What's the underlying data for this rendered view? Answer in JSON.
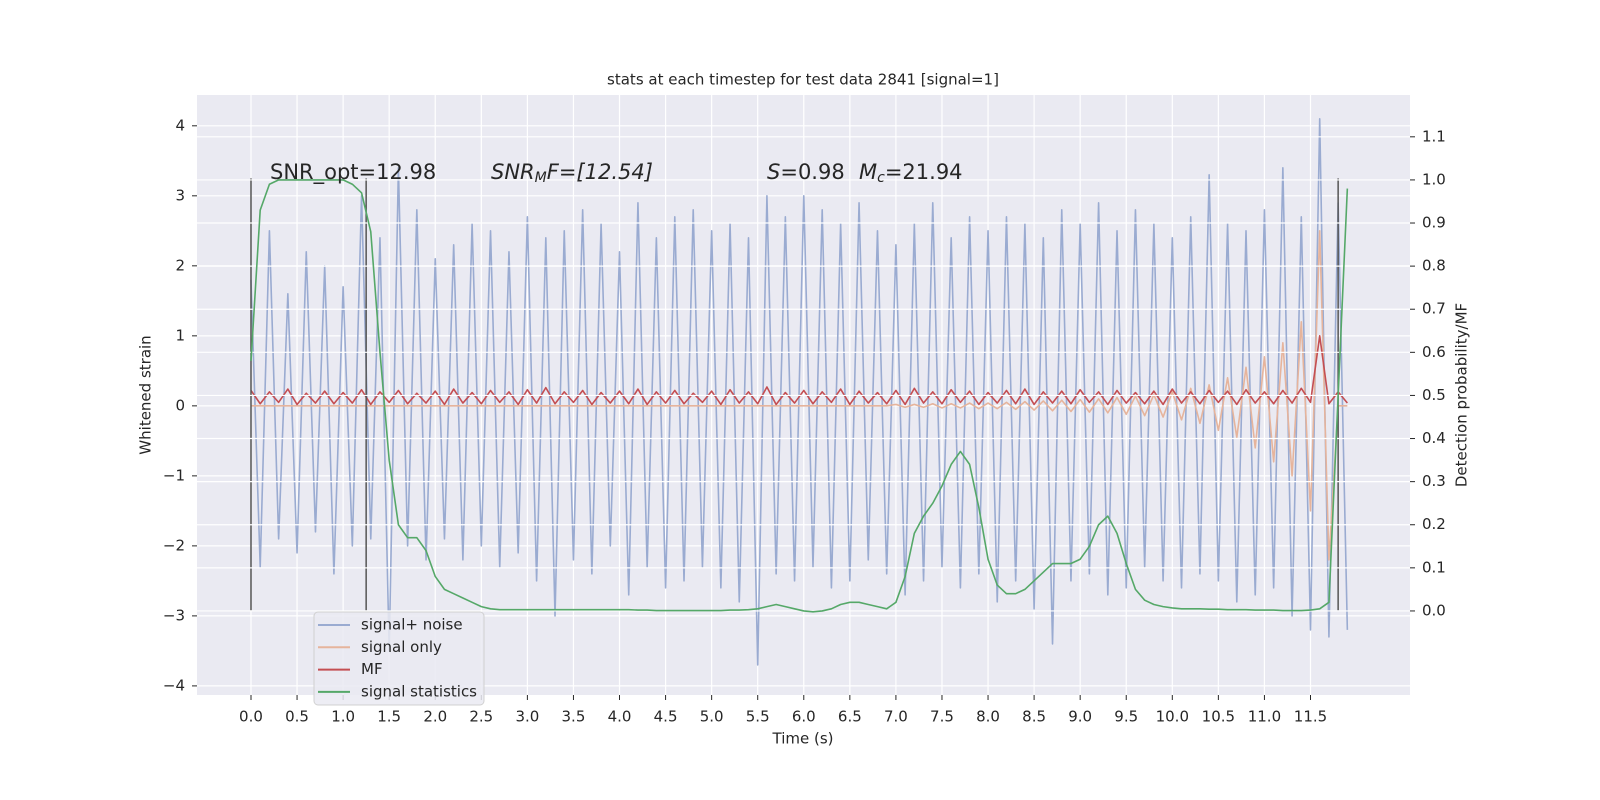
{
  "chart_data": {
    "type": "line",
    "title": "stats at each timestep for test data 2841 [signal=1]",
    "x_label": "Time (s)",
    "y_label": "Whitened strain",
    "y2_label": "Detection probability/MF",
    "annotations": [
      [
        "SNR_opt=12.98"
      ],
      [
        "SNR",
        "M",
        "F=[12.54]"
      ],
      [
        "S",
        "=0.98"
      ],
      [
        "M",
        "c",
        "=21.94"
      ]
    ],
    "x": [
      0,
      0.1,
      0.2,
      0.3,
      0.4,
      0.5,
      0.6,
      0.7,
      0.8,
      0.9,
      1,
      1.1,
      1.2,
      1.3,
      1.4,
      1.5,
      1.6,
      1.7,
      1.8,
      1.9,
      2,
      2.1,
      2.2,
      2.3,
      2.4,
      2.5,
      2.6,
      2.7,
      2.8,
      2.9,
      3,
      3.1,
      3.2,
      3.3,
      3.4,
      3.5,
      3.6,
      3.7,
      3.8,
      3.9,
      4,
      4.1,
      4.2,
      4.3,
      4.4,
      4.5,
      4.6,
      4.7,
      4.8,
      4.9,
      5,
      5.1,
      5.2,
      5.3,
      5.4,
      5.5,
      5.6,
      5.7,
      5.8,
      5.9,
      6,
      6.1,
      6.2,
      6.3,
      6.4,
      6.5,
      6.6,
      6.7,
      6.8,
      6.9,
      7,
      7.1,
      7.2,
      7.3,
      7.4,
      7.5,
      7.6,
      7.7,
      7.8,
      7.9,
      8,
      8.1,
      8.2,
      8.3,
      8.4,
      8.5,
      8.6,
      8.7,
      8.8,
      8.9,
      9,
      9.1,
      9.2,
      9.3,
      9.4,
      9.5,
      9.6,
      9.7,
      9.8,
      9.9,
      10,
      10.1,
      10.2,
      10.3,
      10.4,
      10.5,
      10.6,
      10.7,
      10.8,
      10.9,
      11,
      11.1,
      11.2,
      11.3,
      11.4,
      11.5,
      11.6,
      11.7,
      11.8,
      11.9
    ],
    "series": [
      {
        "name": "signal+ noise",
        "color": "#9aabd1",
        "values": [
          1.8,
          -2.3,
          2.5,
          -1.9,
          1.6,
          -2.1,
          2.2,
          -1.8,
          2.0,
          -2.4,
          1.7,
          -2.0,
          3.0,
          -1.9,
          2.4,
          -3.5,
          3.4,
          -2.0,
          2.8,
          -2.2,
          2.1,
          -1.9,
          2.3,
          -2.2,
          2.6,
          -2.0,
          2.5,
          -2.3,
          2.2,
          -2.1,
          2.7,
          -2.5,
          2.4,
          -3.0,
          2.5,
          -2.2,
          2.8,
          -2.4,
          2.6,
          -2.0,
          2.2,
          -2.7,
          2.9,
          -2.3,
          2.4,
          -2.6,
          2.7,
          -2.5,
          2.8,
          -2.3,
          2.5,
          -2.6,
          2.6,
          -2.8,
          2.4,
          -3.7,
          3.0,
          -2.4,
          2.7,
          -2.5,
          3.0,
          -2.3,
          2.8,
          -2.6,
          2.6,
          -2.5,
          2.9,
          -2.2,
          2.5,
          -2.4,
          2.3,
          -2.7,
          2.6,
          -2.5,
          2.9,
          -2.3,
          2.4,
          -2.6,
          2.7,
          -2.4,
          2.5,
          -2.8,
          2.7,
          -2.5,
          2.6,
          -2.9,
          2.4,
          -3.4,
          2.8,
          -2.5,
          2.6,
          -2.4,
          2.9,
          -2.7,
          2.5,
          -2.6,
          2.8,
          -2.3,
          2.6,
          -2.5,
          2.4,
          -2.6,
          2.7,
          -2.4,
          3.3,
          -2.5,
          2.6,
          -2.8,
          2.5,
          -2.7,
          2.8,
          -2.6,
          3.4,
          -3.0,
          2.7,
          -3.2,
          4.1,
          -3.3,
          2.9,
          -3.2
        ]
      },
      {
        "name": "signal only",
        "color": "#e6b49c",
        "values": [
          0,
          0,
          0,
          0,
          0,
          0,
          0,
          0,
          0,
          0,
          0,
          0,
          0,
          0,
          0,
          0,
          0,
          0,
          0,
          0,
          0,
          0,
          0,
          0,
          0,
          0,
          0,
          0,
          0,
          0,
          0,
          0,
          0,
          0,
          0,
          0,
          0,
          0,
          0,
          0,
          0,
          0,
          0,
          0,
          0,
          0,
          0,
          0,
          0,
          0,
          0,
          0,
          0,
          0,
          0,
          0,
          0,
          0,
          0,
          0,
          0,
          0,
          0,
          0,
          0,
          0,
          0,
          0,
          0,
          0,
          0.02,
          -0.02,
          0.02,
          -0.02,
          0.03,
          -0.03,
          0.03,
          -0.03,
          0.04,
          -0.04,
          0.04,
          -0.04,
          0.05,
          -0.05,
          0.06,
          -0.06,
          0.07,
          -0.07,
          0.08,
          -0.08,
          0.09,
          -0.09,
          0.1,
          -0.1,
          0.12,
          -0.12,
          0.14,
          -0.14,
          0.16,
          -0.16,
          0.2,
          -0.2,
          0.25,
          -0.25,
          0.3,
          -0.35,
          0.4,
          -0.45,
          0.55,
          -0.6,
          0.7,
          -0.8,
          0.9,
          -1.0,
          1.2,
          -1.5,
          2.5,
          -2.2,
          0,
          0
        ]
      },
      {
        "name": "MF",
        "color": "#c44e52",
        "values": [
          0.22,
          0.03,
          0.2,
          0.05,
          0.24,
          0.02,
          0.18,
          0.04,
          0.21,
          0.03,
          0.19,
          0.04,
          0.23,
          0.02,
          0.2,
          0.05,
          0.22,
          0.03,
          0.18,
          0.04,
          0.21,
          0.02,
          0.24,
          0.04,
          0.19,
          0.03,
          0.22,
          0.05,
          0.2,
          0.02,
          0.23,
          0.04,
          0.26,
          0.03,
          0.2,
          0.05,
          0.22,
          0.02,
          0.19,
          0.04,
          0.21,
          0.03,
          0.24,
          0.02,
          0.2,
          0.04,
          0.22,
          0.03,
          0.18,
          0.05,
          0.21,
          0.02,
          0.23,
          0.04,
          0.2,
          0.03,
          0.27,
          0.02,
          0.19,
          0.04,
          0.22,
          0.03,
          0.2,
          0.05,
          0.24,
          0.02,
          0.21,
          0.04,
          0.19,
          0.03,
          0.22,
          0.02,
          0.25,
          0.04,
          0.2,
          0.03,
          0.23,
          0.05,
          0.21,
          0.02,
          0.19,
          0.04,
          0.22,
          0.03,
          0.24,
          0.02,
          0.2,
          0.04,
          0.21,
          0.03,
          0.23,
          0.05,
          0.2,
          0.02,
          0.22,
          0.04,
          0.19,
          0.03,
          0.21,
          0.02,
          0.24,
          0.04,
          0.2,
          0.03,
          0.22,
          0.05,
          0.21,
          0.02,
          0.23,
          0.04,
          0.2,
          0.03,
          0.22,
          0.04,
          0.25,
          0.05,
          1.0,
          0.03,
          0.2,
          0.04
        ]
      },
      {
        "name": "signal statistics",
        "color": "#55a868",
        "axis": "y2",
        "values": [
          0.58,
          0.93,
          0.99,
          1.0,
          1.0,
          1.0,
          1.0,
          1.0,
          1.0,
          1.0,
          1.0,
          0.99,
          0.97,
          0.88,
          0.6,
          0.35,
          0.2,
          0.17,
          0.17,
          0.14,
          0.08,
          0.05,
          0.04,
          0.03,
          0.02,
          0.01,
          0.005,
          0.003,
          0.003,
          0.003,
          0.003,
          0.003,
          0.003,
          0.003,
          0.003,
          0.003,
          0.003,
          0.003,
          0.003,
          0.003,
          0.003,
          0.003,
          0.002,
          0.002,
          0.001,
          0.001,
          0.001,
          0.001,
          0.001,
          0.001,
          0.001,
          0.001,
          0.002,
          0.002,
          0.003,
          0.005,
          0.01,
          0.015,
          0.01,
          0.005,
          0.0,
          -0.002,
          0.0,
          0.005,
          0.015,
          0.02,
          0.02,
          0.015,
          0.01,
          0.005,
          0.02,
          0.08,
          0.18,
          0.22,
          0.25,
          0.29,
          0.34,
          0.37,
          0.34,
          0.24,
          0.12,
          0.06,
          0.04,
          0.04,
          0.05,
          0.07,
          0.09,
          0.11,
          0.11,
          0.11,
          0.12,
          0.15,
          0.2,
          0.22,
          0.18,
          0.11,
          0.05,
          0.025,
          0.015,
          0.01,
          0.007,
          0.005,
          0.005,
          0.005,
          0.004,
          0.004,
          0.003,
          0.003,
          0.003,
          0.002,
          0.002,
          0.002,
          0.001,
          0.001,
          0.001,
          0.002,
          0.005,
          0.02,
          0.5,
          0.98
        ]
      }
    ],
    "vlines": {
      "x": [
        0,
        1.25,
        11.8
      ],
      "ymin": -2.92,
      "ymax": 3.25,
      "color": "#555555"
    },
    "xlim": [
      -0.586,
      12.58
    ],
    "ylim": [
      -4.13,
      4.44
    ],
    "y2lim": [
      -0.195,
      1.197
    ],
    "xticks": [
      {
        "value": 0,
        "label": "0.0"
      },
      0.5,
      {
        "value": 1,
        "label": "1.0"
      },
      1.5,
      {
        "value": 2,
        "label": "2.0"
      },
      2.5,
      {
        "value": 3,
        "label": "3.0"
      },
      3.5,
      {
        "value": 4,
        "label": "4.0"
      },
      4.5,
      {
        "value": 5,
        "label": "5.0"
      },
      5.5,
      {
        "value": 6,
        "label": "6.0"
      },
      6.5,
      {
        "value": 7,
        "label": "7.0"
      },
      7.5,
      {
        "value": 8,
        "label": "8.0"
      },
      8.5,
      {
        "value": 9,
        "label": "9.0"
      },
      9.5,
      {
        "value": 10,
        "label": "10.0"
      },
      10.5,
      {
        "value": 11,
        "label": "11.0"
      },
      11.5
    ],
    "yticks": [
      {
        "value": -4,
        "label": "−4"
      },
      {
        "value": -3,
        "label": "−3"
      },
      {
        "value": -2,
        "label": "−2"
      },
      {
        "value": -1,
        "label": "−1"
      },
      0,
      1,
      2,
      3,
      4
    ],
    "y2ticks": [
      {
        "value": 0,
        "label": "0.0"
      },
      0.1,
      0.2,
      0.3,
      0.4,
      0.5,
      0.6,
      0.7,
      0.8,
      0.9,
      {
        "value": 1,
        "label": "1.0"
      },
      1.1
    ],
    "grid": true,
    "legend": "lower left"
  }
}
